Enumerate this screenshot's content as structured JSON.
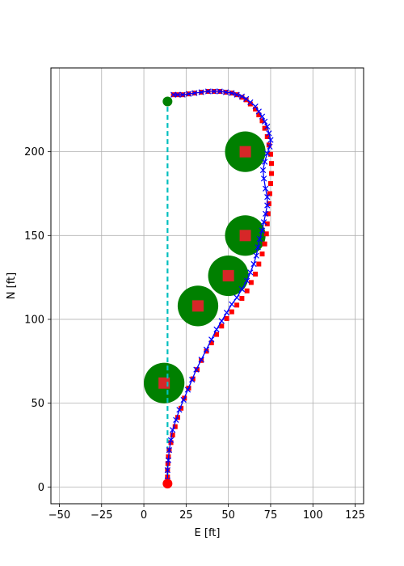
{
  "chart_data": {
    "type": "scatter",
    "title": "",
    "xlabel": "E [ft]",
    "ylabel": "N [ft]",
    "xlim": [
      -55,
      130
    ],
    "ylim": [
      -10,
      250
    ],
    "xticks": [
      -50,
      -25,
      0,
      25,
      50,
      75,
      100,
      125
    ],
    "yticks": [
      0,
      50,
      100,
      150,
      200
    ],
    "grid": true,
    "legend": "none",
    "colors": {
      "obstacle": "#008000",
      "center": "#d62728",
      "waypoint": "#ff0000",
      "trajectory": "#0000ff",
      "reference": "#00bfbf",
      "start": "#ff0000",
      "goal": "#008000"
    },
    "reference_line": {
      "x": [
        14,
        14
      ],
      "y": [
        2,
        230
      ]
    },
    "start_point": {
      "x": 14,
      "y": 2
    },
    "goal_point": {
      "x": 14,
      "y": 230
    },
    "obstacles": [
      {
        "x": 12,
        "y": 62,
        "radius": 12
      },
      {
        "x": 32,
        "y": 108,
        "radius": 12
      },
      {
        "x": 50,
        "y": 126,
        "radius": 12
      },
      {
        "x": 60,
        "y": 150,
        "radius": 12
      },
      {
        "x": 60,
        "y": 200,
        "radius": 12
      }
    ],
    "waypoints": {
      "x": [
        14,
        14,
        14,
        14.2,
        14.5,
        15,
        16,
        17,
        18.5,
        20,
        22,
        24,
        26.5,
        29,
        31.5,
        34,
        37,
        40,
        43,
        46,
        49,
        52,
        55,
        58,
        61,
        63.5,
        66,
        68,
        70,
        71.5,
        72.5,
        73,
        73.5,
        74,
        74.5,
        75,
        75.5,
        75.5,
        75,
        74,
        73,
        71.5,
        70,
        68,
        66,
        63,
        60.5,
        58,
        55,
        52,
        48.5,
        45,
        41.5,
        38,
        34,
        30,
        26.5,
        23,
        20,
        17.5
      ],
      "y": [
        2,
        6,
        10,
        14,
        18,
        22,
        26.5,
        31,
        36,
        41.5,
        47,
        53,
        59,
        64.5,
        70,
        75.5,
        81,
        86,
        91,
        96,
        100.5,
        104.5,
        108.5,
        112.5,
        117,
        122,
        127,
        133,
        139,
        145,
        151,
        157,
        163,
        169,
        175,
        181,
        187,
        193,
        198.5,
        204,
        209,
        214,
        218.5,
        222,
        225.5,
        228.5,
        231,
        232.5,
        234,
        235,
        235.5,
        236,
        236,
        236,
        235.5,
        235,
        234.5,
        234,
        234,
        234
      ]
    },
    "trajectory": {
      "x": [
        14,
        14,
        14.5,
        15,
        16,
        17,
        19,
        21,
        23.5,
        26,
        28.5,
        31,
        34,
        37,
        40,
        43,
        46,
        49,
        52,
        55,
        58,
        61,
        63,
        65,
        66.5,
        67.5,
        68.5,
        70,
        71,
        72,
        73,
        73,
        72,
        71,
        70.5,
        71.5,
        73,
        74.5,
        75,
        74,
        73,
        71.5,
        70,
        68,
        66,
        63,
        60.5,
        58,
        55,
        52,
        48.5,
        45,
        41.5,
        38,
        34,
        30,
        26.5,
        23,
        20,
        17.5
      ],
      "y": [
        4,
        10,
        16,
        22,
        28,
        34,
        40,
        46,
        52,
        58,
        64,
        70,
        76,
        82,
        88,
        94,
        99,
        104,
        109,
        113,
        118,
        123,
        128,
        133,
        138,
        143,
        148,
        153,
        158,
        163,
        168,
        173,
        178,
        184,
        189,
        194,
        199,
        203,
        207,
        211,
        215,
        218,
        221,
        224,
        227,
        229.5,
        231.5,
        233,
        234,
        235,
        235.5,
        236,
        236,
        236,
        235.5,
        235,
        234.5,
        234,
        234,
        234
      ]
    }
  }
}
